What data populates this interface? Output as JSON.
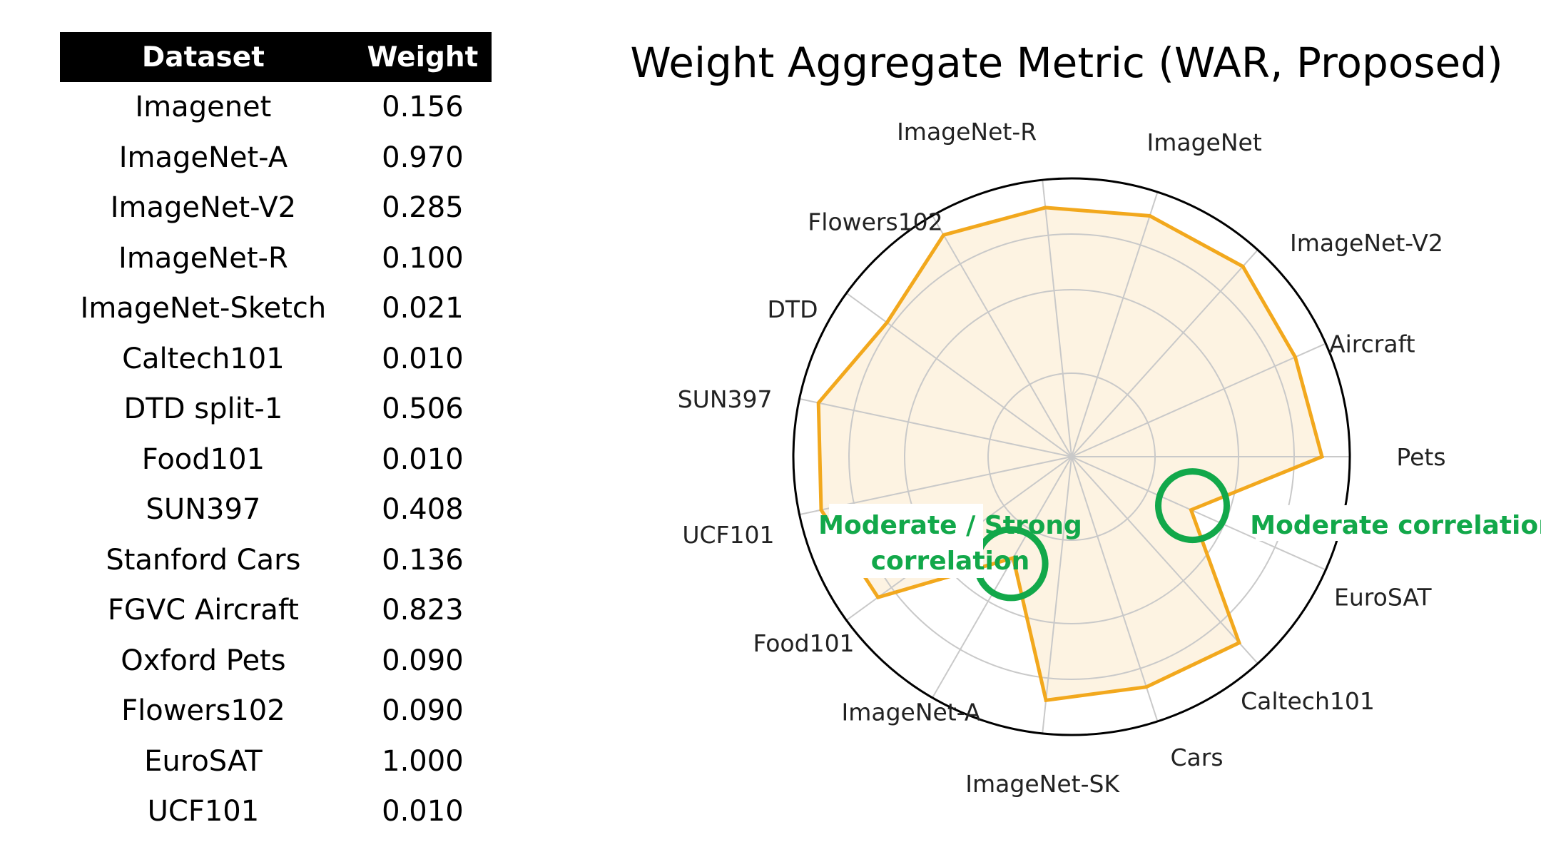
{
  "table": {
    "headers": [
      "Dataset",
      "Weight"
    ],
    "rows": [
      {
        "dataset": "Imagenet",
        "weight": "0.156"
      },
      {
        "dataset": "ImageNet-A",
        "weight": "0.970"
      },
      {
        "dataset": "ImageNet-V2",
        "weight": "0.285"
      },
      {
        "dataset": "ImageNet-R",
        "weight": "0.100"
      },
      {
        "dataset": "ImageNet-Sketch",
        "weight": "0.021"
      },
      {
        "dataset": "Caltech101",
        "weight": "0.010"
      },
      {
        "dataset": "DTD split-1",
        "weight": "0.506"
      },
      {
        "dataset": "Food101",
        "weight": "0.010"
      },
      {
        "dataset": "SUN397",
        "weight": "0.408"
      },
      {
        "dataset": "Stanford Cars",
        "weight": "0.136"
      },
      {
        "dataset": "FGVC Aircraft",
        "weight": "0.823"
      },
      {
        "dataset": "Oxford Pets",
        "weight": "0.090"
      },
      {
        "dataset": "Flowers102",
        "weight": "0.090"
      },
      {
        "dataset": "EuroSAT",
        "weight": "1.000"
      },
      {
        "dataset": "UCF101",
        "weight": "0.010"
      }
    ]
  },
  "chart_data": {
    "type": "radar",
    "title": "Weight Aggregate Metric (WAR, Proposed)",
    "categories": [
      "Pets",
      "Aircraft",
      "ImageNet-V2",
      "ImageNet",
      "ImageNet-R",
      "Flowers102",
      "DTD",
      "SUN397",
      "UCF101",
      "Food101",
      "ImageNet-A",
      "ImageNet-SK",
      "Cars",
      "Caltech101",
      "EuroSAT"
    ],
    "values": [
      0.9,
      0.88,
      0.92,
      0.91,
      0.9,
      0.92,
      0.82,
      0.93,
      0.92,
      0.86,
      0.42,
      0.88,
      0.87,
      0.9,
      0.47
    ],
    "rlim": [
      0,
      1
    ],
    "grid_rings": [
      0.3,
      0.6,
      0.8
    ],
    "grid": true,
    "line_color": "#f2a81d",
    "fill_color": "#fdf3e2",
    "annotations": [
      {
        "text": [
          "Moderate / Strong",
          "correlation"
        ],
        "color": "#12a84a",
        "target": "ImageNet-A"
      },
      {
        "text": [
          "Moderate correlation"
        ],
        "color": "#12a84a",
        "target": "EuroSAT"
      }
    ]
  }
}
